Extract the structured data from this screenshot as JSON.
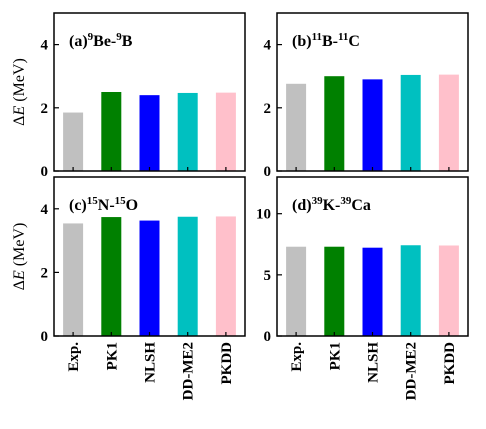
{
  "chart_data": {
    "type": "bar",
    "ylabel": {
      "delta": "Δ",
      "var": "E",
      "unit": " (MeV)"
    },
    "categories": [
      "Exp.",
      "PK1",
      "NLSH",
      "DD-ME2",
      "PKDD"
    ],
    "bar_colors": [
      "#c0c0c0",
      "#008000",
      "#0000ff",
      "#00c0c0",
      "#ffc0cb"
    ],
    "panels": [
      {
        "label_parts": [
          {
            "t": "(a)"
          },
          {
            "t": "9",
            "sup": true
          },
          {
            "t": "Be-"
          },
          {
            "t": "9",
            "sup": true
          },
          {
            "t": "B"
          }
        ],
        "ylim": [
          0,
          5
        ],
        "yticks": [
          0,
          2,
          4
        ],
        "values": [
          1.85,
          2.5,
          2.4,
          2.47,
          2.48
        ]
      },
      {
        "label_parts": [
          {
            "t": "(b)"
          },
          {
            "t": "11",
            "sup": true
          },
          {
            "t": "B-"
          },
          {
            "t": "11",
            "sup": true
          },
          {
            "t": "C"
          }
        ],
        "ylim": [
          0,
          5
        ],
        "yticks": [
          0,
          2,
          4
        ],
        "values": [
          2.76,
          3.0,
          2.9,
          3.04,
          3.05
        ]
      },
      {
        "label_parts": [
          {
            "t": "(c)"
          },
          {
            "t": "15",
            "sup": true
          },
          {
            "t": "N-"
          },
          {
            "t": "15",
            "sup": true
          },
          {
            "t": "O"
          }
        ],
        "ylim": [
          0,
          5
        ],
        "yticks": [
          0,
          2,
          4
        ],
        "values": [
          3.54,
          3.74,
          3.63,
          3.75,
          3.76
        ]
      },
      {
        "label_parts": [
          {
            "t": "(d)"
          },
          {
            "t": "39",
            "sup": true
          },
          {
            "t": "K-"
          },
          {
            "t": "39",
            "sup": true
          },
          {
            "t": "Ca"
          }
        ],
        "ylim": [
          0,
          13
        ],
        "yticks": [
          0,
          5,
          10
        ],
        "values": [
          7.3,
          7.3,
          7.22,
          7.42,
          7.4
        ]
      }
    ]
  }
}
